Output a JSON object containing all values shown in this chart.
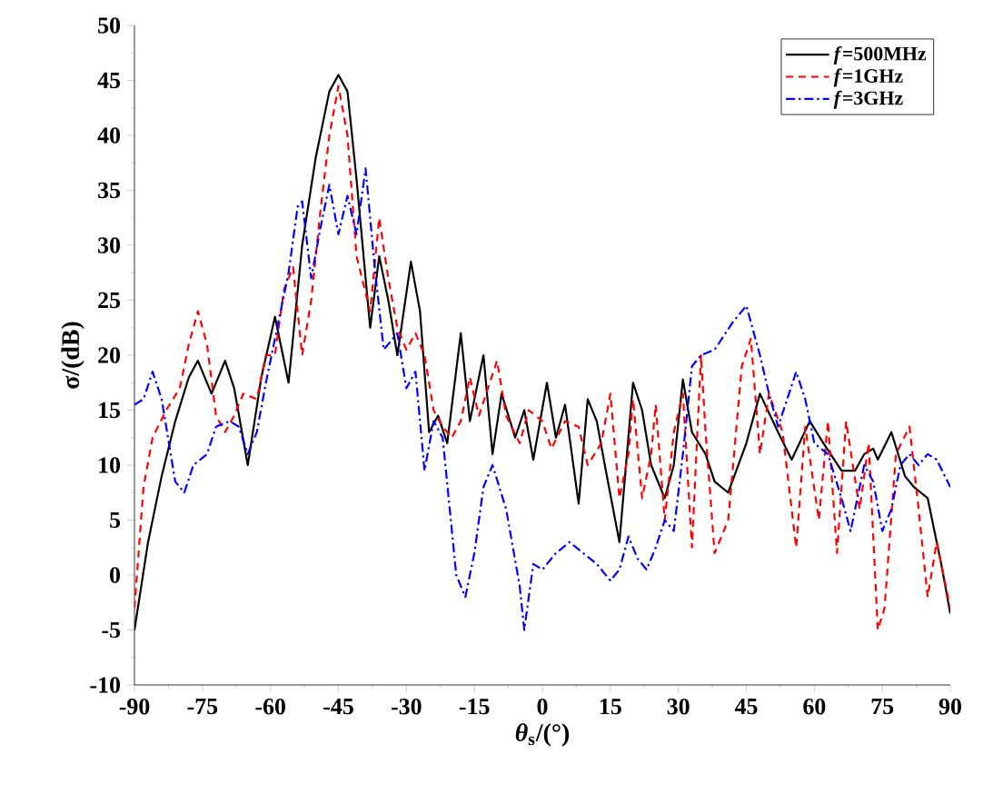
{
  "chart_data": {
    "type": "line",
    "xlabel": "*θ*$_{s}$/(°)",
    "ylabel": "σ/(dB)",
    "xlim": [
      -90,
      90
    ],
    "ylim": [
      -10,
      50
    ],
    "xticks": [
      -90,
      -75,
      -60,
      -45,
      -30,
      -15,
      0,
      15,
      30,
      45,
      60,
      75,
      90
    ],
    "yticks": [
      -10,
      -5,
      0,
      5,
      10,
      15,
      20,
      25,
      30,
      35,
      40,
      45,
      50
    ],
    "grid": false,
    "legend": "top right",
    "marker": "none",
    "series": [
      {
        "name": "*f*=500MHz",
        "color": "#000000",
        "line_style": "solid",
        "x": [
          -90,
          -87,
          -84,
          -81,
          -78,
          -76,
          -73,
          -70,
          -68,
          -65,
          -62,
          -59,
          -56,
          -53,
          -50,
          -47,
          -45,
          -43,
          -41,
          -38,
          -36,
          -34,
          -32,
          -29,
          -27,
          -25,
          -23,
          -21,
          -18,
          -16,
          -13,
          -11,
          -9,
          -6,
          -4,
          -2,
          1,
          3,
          5,
          8,
          10,
          12,
          14,
          17,
          20,
          22,
          24,
          27,
          29,
          31,
          33,
          36,
          38,
          41,
          45,
          48,
          52,
          55,
          59,
          62,
          66,
          69,
          71,
          73,
          74,
          77,
          80,
          82,
          85,
          88,
          90
        ],
        "values": [
          -5,
          3,
          9,
          14,
          18,
          19.5,
          16.5,
          19.5,
          17,
          10,
          18,
          23.5,
          17.5,
          30,
          38,
          44,
          45.5,
          44,
          36,
          22.5,
          29,
          25,
          20,
          28.5,
          24,
          13,
          14.5,
          12,
          22,
          14,
          20,
          11,
          16.5,
          12.5,
          15,
          10.5,
          17.5,
          12.5,
          15.5,
          6.5,
          16,
          14,
          9.5,
          3,
          17.5,
          15,
          10,
          7,
          10,
          17.8,
          13,
          11,
          8.5,
          7.5,
          12,
          16.5,
          13,
          10.5,
          14,
          12,
          9.5,
          9.5,
          11,
          11.5,
          10.5,
          13,
          9,
          8,
          7,
          1,
          -3.5
        ]
      },
      {
        "name": "*f*=1GHz",
        "color": "#ff0000",
        "line_style": "dashed",
        "x": [
          -90,
          -88,
          -86,
          -83,
          -80,
          -78,
          -76,
          -74,
          -72,
          -70,
          -68,
          -66,
          -63,
          -61,
          -59,
          -57,
          -55,
          -53,
          -51,
          -49,
          -47,
          -45,
          -43,
          -41,
          -38,
          -36,
          -34,
          -32,
          -30,
          -28,
          -26,
          -24,
          -22,
          -20,
          -18,
          -16,
          -14,
          -12,
          -10,
          -8,
          -5,
          -3,
          0,
          2,
          5,
          8,
          10,
          13,
          15,
          17,
          19,
          20,
          22,
          24,
          25,
          27,
          29,
          31,
          33,
          35,
          36,
          38,
          41,
          44,
          46,
          48,
          50,
          53,
          56,
          58,
          61,
          63,
          65,
          67,
          70,
          72,
          74,
          75.5,
          78,
          81,
          83,
          85,
          87,
          90
        ],
        "values": [
          -3,
          8,
          12.5,
          15,
          17,
          21,
          24,
          21,
          14.5,
          13,
          14.5,
          16.5,
          16,
          20,
          20,
          26,
          28,
          20,
          25,
          33,
          40,
          44.5,
          40,
          29,
          24,
          32.5,
          27,
          22.5,
          20.5,
          22,
          20,
          15,
          13.5,
          12.5,
          14,
          18,
          14.5,
          17,
          19.5,
          14.5,
          12,
          15,
          14,
          11.5,
          14,
          13.5,
          10,
          12,
          16.5,
          7,
          11,
          16,
          7,
          11,
          15.5,
          5,
          13,
          16.5,
          2.5,
          20,
          13,
          2,
          5,
          19,
          21.5,
          11,
          16.5,
          13,
          2.5,
          13.5,
          5,
          14,
          2,
          14,
          6,
          12,
          -5,
          -3,
          11,
          13.5,
          6,
          -2,
          3,
          -3
        ]
      },
      {
        "name": "*f*=3GHz",
        "color": "#0000ff",
        "line_style": "dashdot",
        "x": [
          -90,
          -88,
          -86,
          -84,
          -81,
          -79,
          -77,
          -74,
          -72,
          -69,
          -67,
          -65,
          -63,
          -61,
          -59,
          -56,
          -54,
          -53,
          -51,
          -49,
          -47,
          -45,
          -43,
          -41,
          -39,
          -37,
          -35,
          -32,
          -30,
          -28,
          -26,
          -24,
          -22,
          -19,
          -17,
          -15,
          -13,
          -11,
          -8,
          -5,
          -4,
          -2,
          0,
          3,
          6,
          9,
          12,
          15,
          17,
          19,
          21,
          23,
          25,
          27,
          29,
          31,
          33,
          35,
          38,
          42,
          45,
          48,
          50,
          52,
          54,
          56,
          58,
          60,
          63,
          66,
          68,
          71,
          73,
          75,
          77,
          79,
          81,
          83,
          85,
          87,
          90
        ],
        "values": [
          15.5,
          16,
          18.5,
          16,
          8.5,
          7.5,
          10,
          11,
          13.5,
          14,
          13.5,
          11,
          13,
          17.5,
          21.5,
          27.5,
          33.5,
          34,
          27,
          31.5,
          35.5,
          31,
          34.5,
          31,
          37,
          28,
          20.5,
          22,
          17,
          18.5,
          9.5,
          14,
          12.5,
          0,
          -2,
          2,
          8,
          10,
          6,
          -1,
          -5,
          1,
          0.5,
          2,
          3,
          2,
          1,
          -0.5,
          0.5,
          3.5,
          1.5,
          0.5,
          2.5,
          5,
          4,
          11,
          19,
          20,
          20.5,
          23,
          24.5,
          20,
          16.5,
          13.5,
          16,
          18.5,
          16,
          12,
          11,
          7,
          4,
          10,
          8.5,
          4,
          6,
          10,
          11,
          10,
          11,
          10.5,
          8
        ]
      }
    ]
  }
}
